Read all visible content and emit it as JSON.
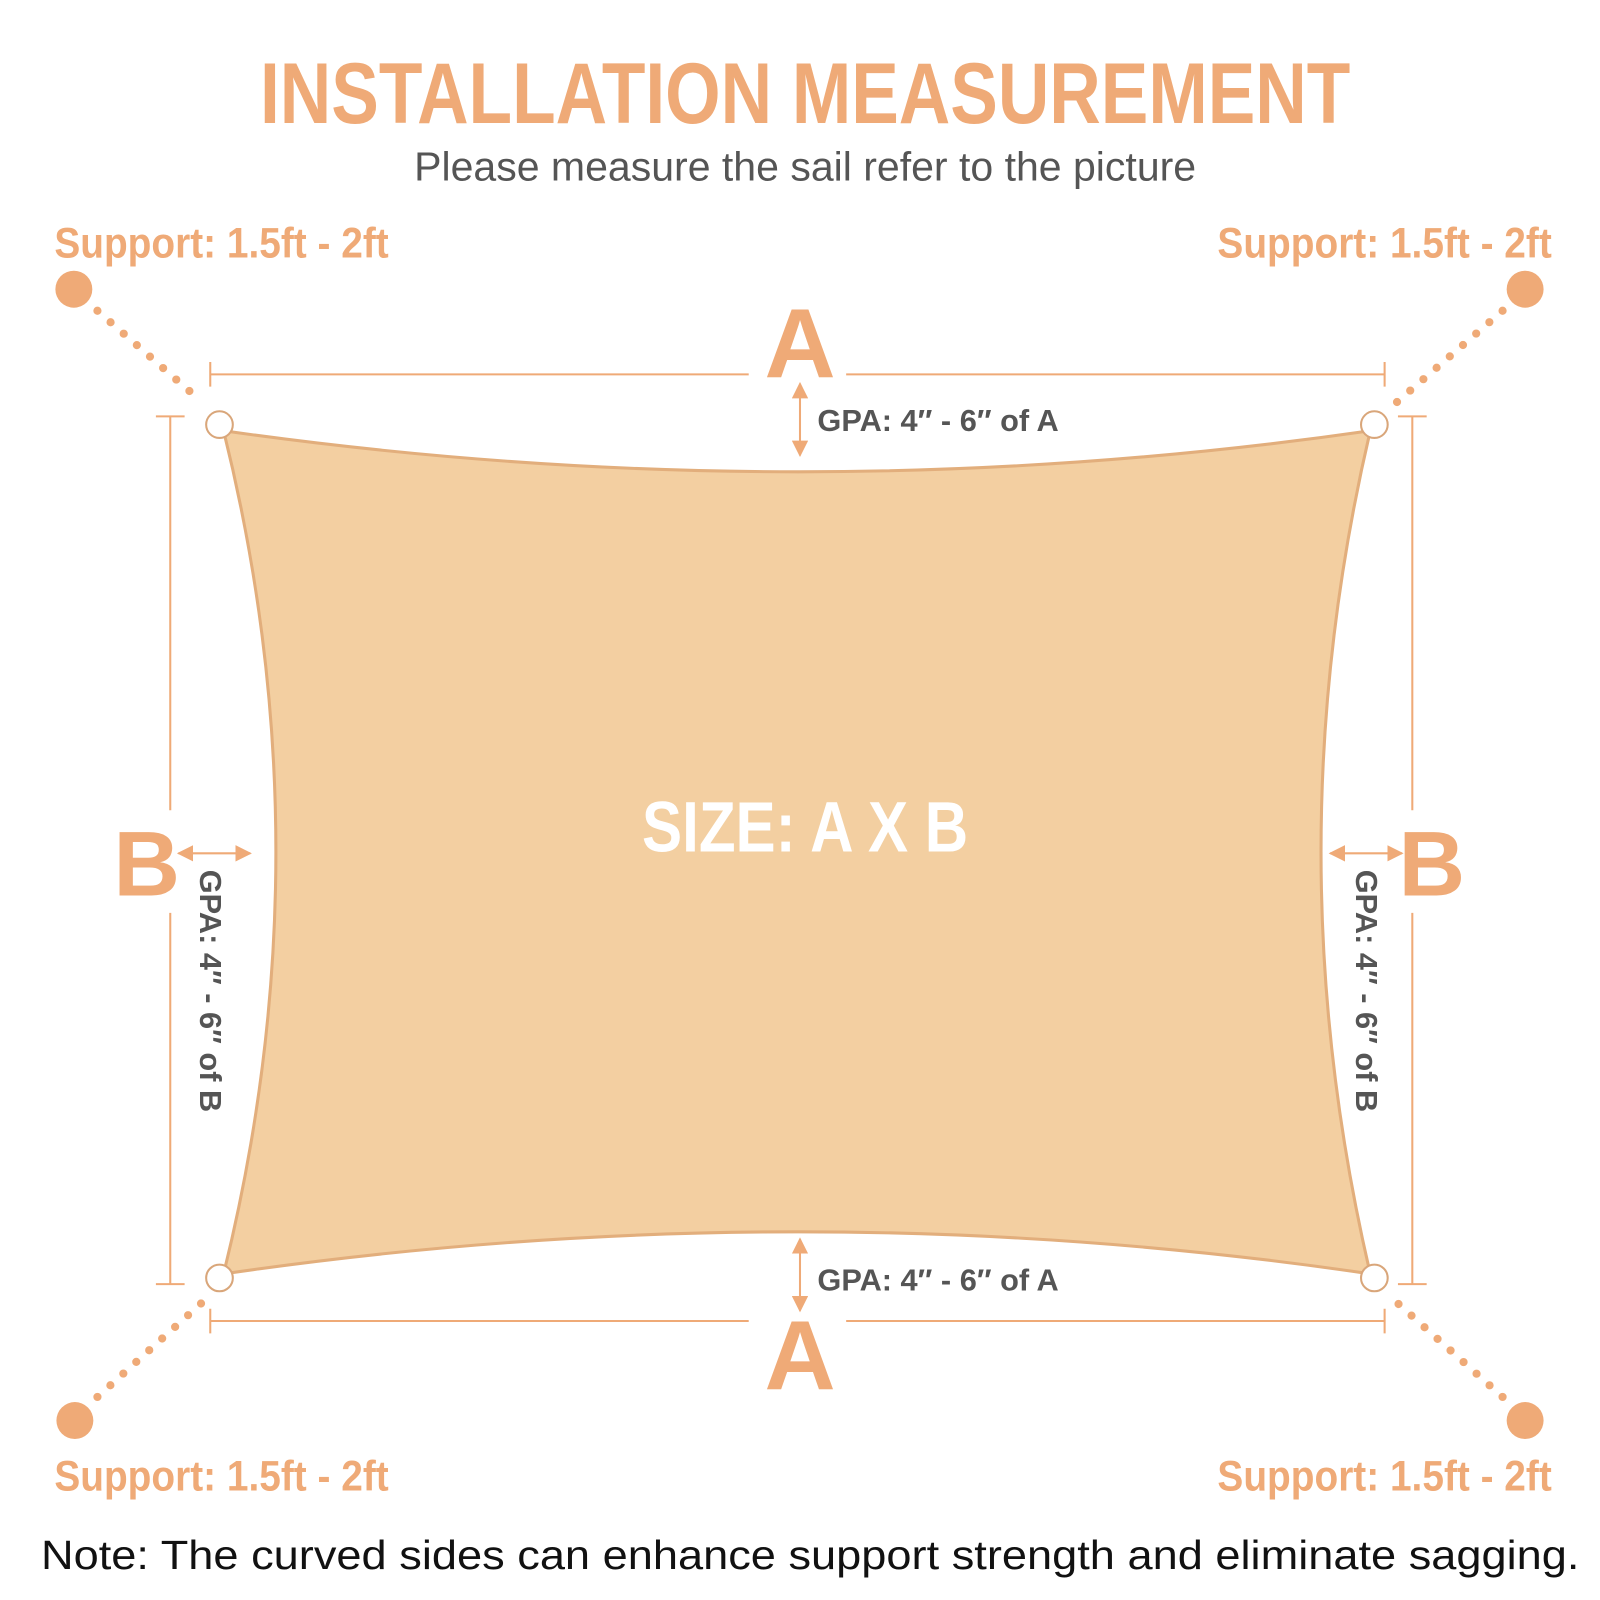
{
  "header": {
    "title": "INSTALLATION MEASUREMENT",
    "subtitle": "Please measure the sail refer to the picture"
  },
  "supports": {
    "top_left": "Support: 1.5ft - 2ft",
    "top_right": "Support: 1.5ft - 2ft",
    "bottom_left": "Support: 1.5ft - 2ft",
    "bottom_right": "Support: 1.5ft - 2ft"
  },
  "dimensions": {
    "top": "A",
    "bottom": "A",
    "left": "B",
    "right": "B"
  },
  "gpa": {
    "top": "GPA: 4″ - 6″ of A",
    "bottom": "GPA: 4″ - 6″ of A",
    "left": "GPA: 4″ - 6″ of B",
    "right": "GPA: 4″ - 6″ of B"
  },
  "sail": {
    "label": "SIZE: A X B"
  },
  "note": "Note: The curved sides can enhance support strength and eliminate sagging."
}
